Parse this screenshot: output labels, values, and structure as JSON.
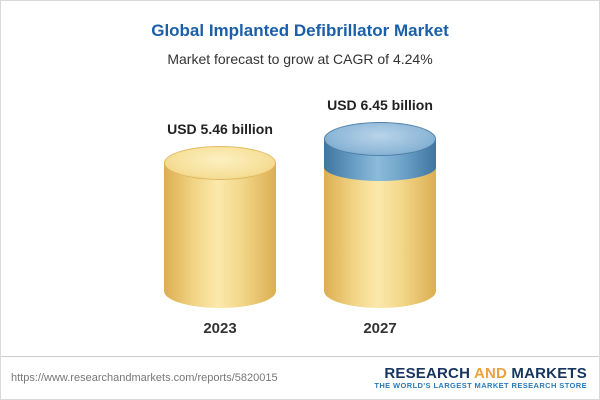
{
  "header": {
    "title": "Global Implanted Defibrillator Market",
    "subtitle": "Market forecast to grow at CAGR of 4.24%"
  },
  "chart_data": {
    "type": "bar",
    "categories": [
      "2023",
      "2027"
    ],
    "values": [
      5.46,
      6.45
    ],
    "value_labels": [
      "USD 5.46 billion",
      "USD 6.45 billion"
    ],
    "unit": "USD billion",
    "title": "Global Implanted Defibrillator Market",
    "subtitle": "Market forecast to grow at CAGR of 4.24%",
    "cagr_percent": 4.24,
    "ylim": [
      0,
      6.45
    ],
    "legend_position": "none",
    "grid": false,
    "bar_style": "3d-cylinder",
    "colors": {
      "base_segment": "#f2d688",
      "growth_segment": "#6ea3c9"
    }
  },
  "bars": [
    {
      "value_label": "USD 5.46 billion",
      "year": "2023"
    },
    {
      "value_label": "USD 6.45 billion",
      "year": "2027"
    }
  ],
  "footer": {
    "url": "https://www.researchandmarkets.com/reports/5820015",
    "logo": {
      "word1": "RESEARCH",
      "word2": "AND",
      "word3": "MARKETS",
      "tagline": "THE WORLD'S LARGEST MARKET RESEARCH STORE"
    }
  }
}
